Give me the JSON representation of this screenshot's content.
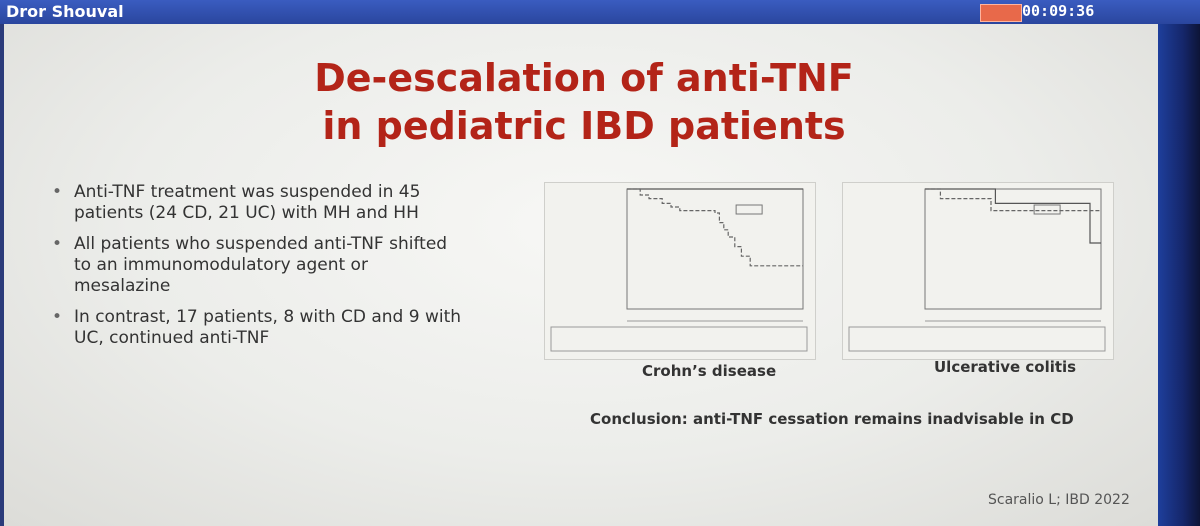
{
  "topbar": {
    "presenter_name": "Dror Shouval",
    "timer": "00:09:36"
  },
  "slide": {
    "title_line1": "De-escalation of anti-TNF",
    "title_line2": "in pediatric IBD patients",
    "bullets": [
      "Anti-TNF treatment was suspended in 45 patients (24 CD, 21 UC) with MH and HH",
      "All patients who suspended anti-TNF shifted to an immunomodulatory agent or mesalazine",
      "In contrast, 17 patients, 8 with CD and 9 with UC, continued anti-TNF"
    ],
    "figure_left_caption": "Crohn’s disease",
    "figure_right_caption": "Ulcerative colitis",
    "conclusion": "Conclusion: anti-TNF cessation remains inadvisable in CD",
    "citation": "Scaralio L; IBD 2022"
  },
  "chart_data": [
    {
      "type": "line",
      "title": "",
      "xlabel": "",
      "ylabel": "",
      "xlim": [
        0,
        4
      ],
      "ylim": [
        0,
        1
      ],
      "series": [
        {
          "x": [
            0,
            4
          ],
          "y": [
            1.0,
            1.0
          ]
        },
        {
          "x": [
            0,
            0.3,
            0.5,
            0.8,
            1.0,
            1.2,
            1.5,
            2.0,
            2.1,
            2.2,
            2.3,
            2.45,
            2.6,
            2.8,
            4.0
          ],
          "y": [
            1.0,
            0.95,
            0.92,
            0.88,
            0.85,
            0.82,
            0.82,
            0.8,
            0.72,
            0.66,
            0.6,
            0.52,
            0.44,
            0.36,
            0.36
          ]
        }
      ]
    },
    {
      "type": "line",
      "title": "",
      "xlabel": "",
      "ylabel": "",
      "xlim": [
        0,
        4
      ],
      "ylim": [
        0,
        1
      ],
      "series": [
        {
          "x": [
            0,
            1.6,
            1.6,
            3.75,
            3.75,
            4.0
          ],
          "y": [
            1.0,
            1.0,
            0.88,
            0.88,
            0.55,
            0.55
          ]
        },
        {
          "x": [
            0,
            0.35,
            0.35,
            1.5,
            1.5,
            4.0
          ],
          "y": [
            1.0,
            1.0,
            0.92,
            0.92,
            0.82,
            0.82
          ]
        }
      ]
    }
  ]
}
